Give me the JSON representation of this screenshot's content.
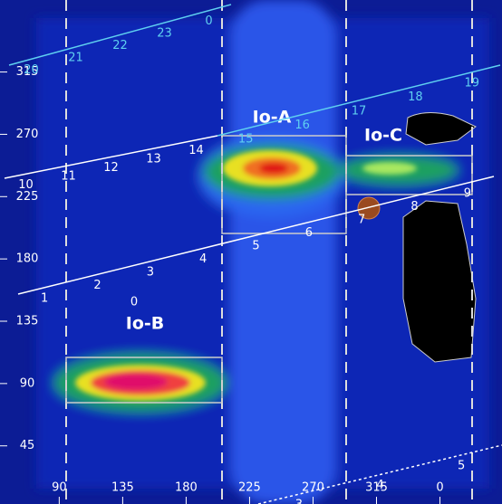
{
  "chart_data": {
    "type": "heatmap",
    "xlim": [
      48,
      404
    ],
    "ylim": [
      3,
      367
    ],
    "xticks": [
      90,
      135,
      180,
      225,
      270,
      315,
      {
        "value": 360,
        "label": "0"
      }
    ],
    "yticks": [
      45,
      90,
      135,
      180,
      225,
      270,
      315
    ],
    "regions": [
      {
        "label": "Io-A"
      },
      {
        "label": "Io-B"
      },
      {
        "label": "Io-C"
      }
    ],
    "hour_lines": [
      {
        "color": "#5fd0f0",
        "labels": [
          "20",
          "21",
          "22",
          "23",
          "0"
        ]
      },
      {
        "color": "#ffffff",
        "labels": [
          "10",
          "11",
          "12",
          "13",
          "14"
        ]
      },
      {
        "color": "#5fd0f0",
        "labels": [
          "15",
          "16",
          "17",
          "18",
          "19"
        ]
      },
      {
        "color": "#ffffff",
        "labels": [
          "1",
          "2",
          "3",
          "4",
          "5",
          "6",
          "7",
          "8",
          "9"
        ]
      },
      {
        "color": "#ffffff",
        "labels": [
          "3",
          "4",
          "5"
        ]
      }
    ],
    "note_label": "0"
  }
}
